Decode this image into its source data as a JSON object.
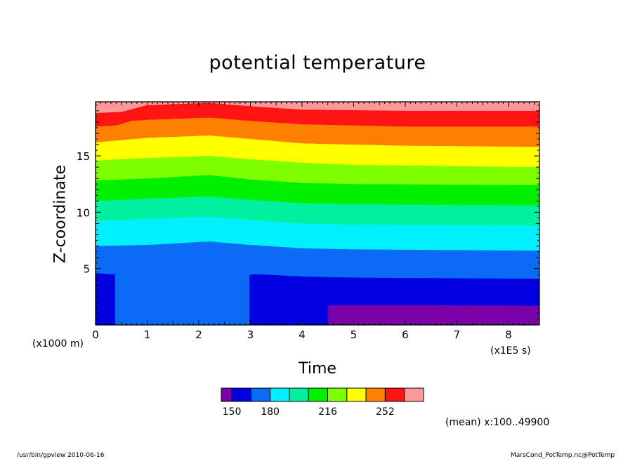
{
  "chart_data": {
    "type": "heatmap",
    "title": "potential temperature",
    "xlabel": "Time",
    "ylabel": "Z-coordinate",
    "x_unit": "(x1E5 s)",
    "y_unit": "(x1000 m)",
    "xlim": [
      0,
      8.6
    ],
    "ylim": [
      0,
      19.8
    ],
    "xticks": [
      0,
      1,
      2,
      3,
      4,
      5,
      6,
      7,
      8
    ],
    "yticks": [
      5,
      10,
      15
    ],
    "colorbar": {
      "colors": [
        "#7a00a8",
        "#0000e0",
        "#0a6cf5",
        "#00f0ff",
        "#00f0a0",
        "#00f000",
        "#80ff00",
        "#ffff00",
        "#ff8000",
        "#ff1414",
        "#ff9898"
      ],
      "labels": [
        "150",
        "180",
        "216",
        "252"
      ],
      "label_positions": [
        1,
        3,
        6,
        9
      ]
    },
    "contour_boundaries_height": [
      {
        "boundary": 1,
        "points": [
          [
            4.5,
            1.7
          ],
          [
            4.6,
            1.75
          ],
          [
            5.5,
            1.75
          ],
          [
            6.5,
            1.75
          ],
          [
            8.6,
            1.7
          ]
        ]
      },
      {
        "boundary": 2,
        "points": [
          [
            0,
            4.6
          ],
          [
            0.3,
            4.5
          ],
          [
            2.9,
            4.4
          ],
          [
            3.1,
            4.5
          ],
          [
            4.0,
            4.3
          ],
          [
            5.0,
            4.2
          ],
          [
            8.6,
            4.1
          ]
        ]
      },
      {
        "boundary": 3,
        "points": [
          [
            0,
            7.0
          ],
          [
            1.0,
            7.1
          ],
          [
            2.2,
            7.4
          ],
          [
            3.0,
            7.1
          ],
          [
            4.0,
            6.8
          ],
          [
            5.0,
            6.7
          ],
          [
            8.6,
            6.6
          ]
        ]
      },
      {
        "boundary": 4,
        "points": [
          [
            0,
            9.2
          ],
          [
            1.0,
            9.4
          ],
          [
            2.2,
            9.6
          ],
          [
            3.0,
            9.3
          ],
          [
            4.0,
            9.0
          ],
          [
            5.0,
            8.9
          ],
          [
            8.6,
            8.8
          ]
        ]
      },
      {
        "boundary": 5,
        "points": [
          [
            0,
            11.0
          ],
          [
            1.0,
            11.2
          ],
          [
            2.2,
            11.4
          ],
          [
            3.0,
            11.1
          ],
          [
            4.0,
            10.8
          ],
          [
            5.0,
            10.7
          ],
          [
            8.6,
            10.6
          ]
        ]
      },
      {
        "boundary": 6,
        "points": [
          [
            0,
            12.8
          ],
          [
            1.0,
            13.0
          ],
          [
            2.2,
            13.3
          ],
          [
            3.0,
            12.9
          ],
          [
            4.0,
            12.6
          ],
          [
            5.0,
            12.5
          ],
          [
            8.6,
            12.4
          ]
        ]
      },
      {
        "boundary": 7,
        "points": [
          [
            0,
            14.6
          ],
          [
            1.0,
            14.8
          ],
          [
            2.2,
            15.0
          ],
          [
            3.0,
            14.7
          ],
          [
            4.0,
            14.4
          ],
          [
            5.0,
            14.2
          ],
          [
            8.6,
            14.0
          ]
        ]
      },
      {
        "boundary": 8,
        "points": [
          [
            0,
            16.2
          ],
          [
            0.5,
            16.4
          ],
          [
            1.0,
            16.6
          ],
          [
            2.2,
            16.8
          ],
          [
            3.0,
            16.5
          ],
          [
            4.0,
            16.1
          ],
          [
            6.0,
            15.9
          ],
          [
            8.6,
            15.8
          ]
        ]
      },
      {
        "boundary": 9,
        "points": [
          [
            0,
            17.6
          ],
          [
            0.4,
            17.7
          ],
          [
            0.7,
            18.1
          ],
          [
            1.0,
            18.2
          ],
          [
            2.2,
            18.4
          ],
          [
            3.0,
            18.1
          ],
          [
            4.0,
            17.8
          ],
          [
            6.0,
            17.6
          ],
          [
            8.6,
            17.6
          ]
        ]
      },
      {
        "boundary": 10,
        "points": [
          [
            0,
            18.8
          ],
          [
            0.5,
            18.9
          ],
          [
            1.0,
            19.5
          ],
          [
            2.2,
            19.7
          ],
          [
            3.0,
            19.4
          ],
          [
            4.0,
            19.1
          ],
          [
            6.0,
            19.0
          ],
          [
            8.6,
            19.0
          ]
        ]
      }
    ],
    "low_region_notch": {
      "x_start": 0.38,
      "x_end": 2.98,
      "color_index": 2
    }
  },
  "labels": {
    "title": "potential temperature",
    "xlabel": "Time",
    "ylabel": "Z-coordinate",
    "x_unit": "(x1E5 s)",
    "y_unit": "(x1000 m)",
    "mean_note": "(mean) x:100..49900",
    "footer_left": "/usr/bin/gpview  2010-06-16",
    "footer_right": "MarsCond_PotTemp.nc@PotTemp"
  }
}
